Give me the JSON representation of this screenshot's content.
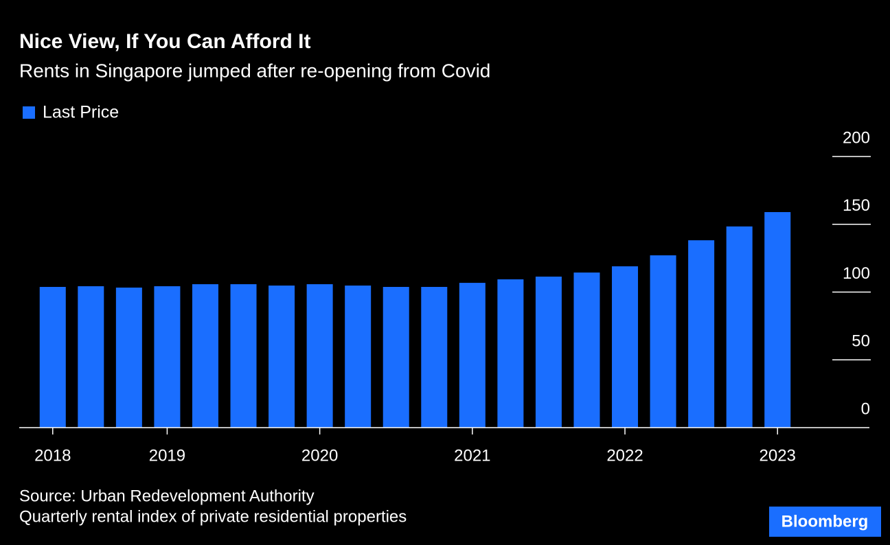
{
  "chart_data": {
    "type": "bar",
    "title": "Nice View, If You Can Afford It",
    "subtitle": "Rents in Singapore jumped after re-opening from Covid",
    "series": [
      {
        "name": "Last Price",
        "color": "#1a6eff",
        "values": [
          103.8,
          104.3,
          103.3,
          104.3,
          105.8,
          105.8,
          104.8,
          105.8,
          104.8,
          103.8,
          103.8,
          106.8,
          109.4,
          111.4,
          114.4,
          119.0,
          127.1,
          138.2,
          148.4,
          159.0
        ]
      }
    ],
    "categories": [
      "2018",
      null,
      null,
      "2019",
      null,
      null,
      null,
      "2020",
      null,
      null,
      null,
      "2021",
      null,
      null,
      null,
      "2022",
      null,
      null,
      null,
      "2023"
    ],
    "ylim": [
      0,
      200
    ],
    "yticks": [
      0,
      50,
      100,
      150,
      200
    ],
    "grid": true,
    "source": "Source: Urban Redevelopment Authority",
    "note": "Quarterly rental index of private residential properties",
    "logo": "Bloomberg"
  }
}
